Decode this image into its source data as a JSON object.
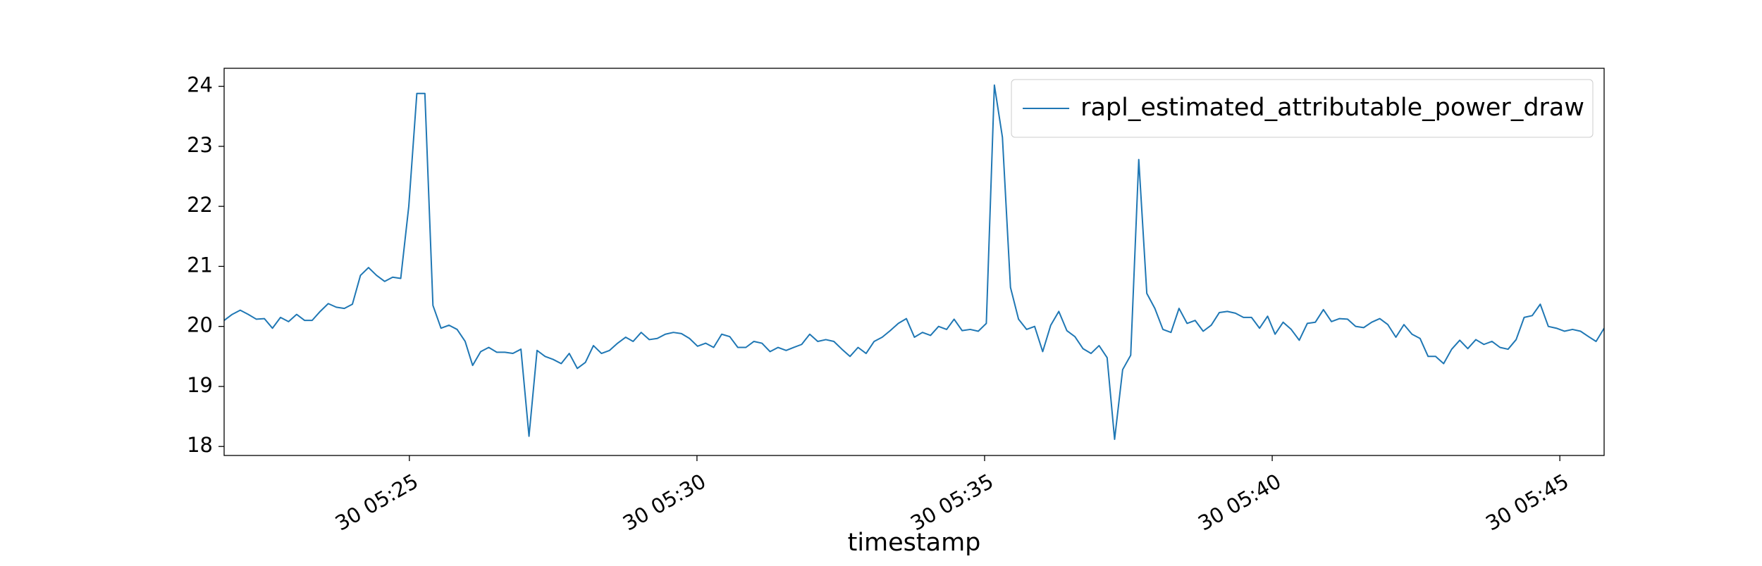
{
  "chart_data": {
    "type": "line",
    "x_label": "timestamp",
    "x": [
      21.78,
      21.92,
      22.06,
      22.2,
      22.34,
      22.48,
      22.62,
      22.76,
      22.9,
      23.04,
      23.18,
      23.31,
      23.45,
      23.59,
      23.73,
      23.87,
      24.01,
      24.15,
      24.29,
      24.43,
      24.57,
      24.71,
      24.85,
      24.99,
      25.13,
      25.27,
      25.41,
      25.55,
      25.69,
      25.83,
      25.97,
      26.1,
      26.24,
      26.38,
      26.52,
      26.66,
      26.8,
      26.94,
      27.08,
      27.22,
      27.36,
      27.5,
      27.64,
      27.78,
      27.92,
      28.06,
      28.2,
      28.34,
      28.48,
      28.62,
      28.76,
      28.89,
      29.03,
      29.17,
      29.31,
      29.45,
      29.59,
      29.73,
      29.87,
      30.01,
      30.15,
      30.29,
      30.43,
      30.57,
      30.71,
      30.85,
      30.99,
      31.13,
      31.27,
      31.41,
      31.55,
      31.68,
      31.82,
      31.96,
      32.1,
      32.24,
      32.38,
      32.52,
      32.66,
      32.8,
      32.94,
      33.08,
      33.22,
      33.36,
      33.5,
      33.64,
      33.78,
      33.92,
      34.06,
      34.2,
      34.34,
      34.47,
      34.61,
      34.75,
      34.89,
      35.03,
      35.17,
      35.31,
      35.45,
      35.59,
      35.73,
      35.87,
      36.01,
      36.15,
      36.29,
      36.43,
      36.57,
      36.71,
      36.85,
      36.99,
      37.13,
      37.26,
      37.4,
      37.54,
      37.68,
      37.82,
      37.96,
      38.1,
      38.24,
      38.38,
      38.52,
      38.66,
      38.8,
      38.94,
      39.08,
      39.22,
      39.36,
      39.5,
      39.64,
      39.78,
      39.92,
      40.05,
      40.19,
      40.33,
      40.47,
      40.61,
      40.75,
      40.89,
      41.03,
      41.17,
      41.31,
      41.45,
      41.59,
      41.73,
      41.87,
      42.01,
      42.15,
      42.29,
      42.43,
      42.57,
      42.71,
      42.84,
      42.98,
      43.12,
      43.26,
      43.4,
      43.54,
      43.68,
      43.82,
      43.96,
      44.1,
      44.24,
      44.38,
      44.52,
      44.66,
      44.8,
      44.94,
      45.08,
      45.22,
      45.36,
      45.5,
      45.63,
      45.77
    ],
    "series": [
      {
        "name": "rapl_estimated_attributable_power_draw",
        "color": "#1f77b4",
        "values": [
          20.1,
          20.2,
          20.27,
          20.2,
          20.12,
          20.13,
          19.97,
          20.15,
          20.08,
          20.2,
          20.1,
          20.1,
          20.25,
          20.38,
          20.32,
          20.3,
          20.37,
          20.85,
          20.98,
          20.85,
          20.75,
          20.82,
          20.8,
          22.0,
          23.88,
          23.88,
          20.35,
          19.97,
          20.02,
          19.95,
          19.75,
          19.35,
          19.58,
          19.65,
          19.57,
          19.57,
          19.55,
          19.62,
          18.17,
          19.6,
          19.5,
          19.45,
          19.38,
          19.55,
          19.3,
          19.4,
          19.68,
          19.55,
          19.6,
          19.72,
          19.82,
          19.75,
          19.9,
          19.78,
          19.8,
          19.87,
          19.9,
          19.88,
          19.8,
          19.67,
          19.72,
          19.65,
          19.87,
          19.83,
          19.65,
          19.65,
          19.75,
          19.72,
          19.58,
          19.65,
          19.6,
          19.65,
          19.7,
          19.87,
          19.75,
          19.78,
          19.75,
          19.62,
          19.5,
          19.65,
          19.55,
          19.75,
          19.82,
          19.93,
          20.05,
          20.13,
          19.82,
          19.9,
          19.85,
          20.0,
          19.95,
          20.12,
          19.93,
          19.95,
          19.92,
          20.05,
          24.02,
          23.15,
          20.65,
          20.12,
          19.95,
          20.0,
          19.58,
          20.02,
          20.25,
          19.93,
          19.83,
          19.63,
          19.55,
          19.68,
          19.48,
          18.12,
          19.28,
          19.52,
          22.78,
          20.55,
          20.3,
          19.95,
          19.9,
          20.3,
          20.05,
          20.1,
          19.92,
          20.02,
          20.23,
          20.25,
          20.22,
          20.15,
          20.15,
          19.97,
          20.17,
          19.87,
          20.07,
          19.95,
          19.77,
          20.05,
          20.07,
          20.28,
          20.08,
          20.13,
          20.12,
          20.0,
          19.98,
          20.07,
          20.13,
          20.03,
          19.82,
          20.03,
          19.87,
          19.8,
          19.5,
          19.5,
          19.38,
          19.62,
          19.77,
          19.63,
          19.78,
          19.7,
          19.75,
          19.65,
          19.62,
          19.78,
          20.15,
          20.18,
          20.37,
          20.0,
          19.97,
          19.92,
          19.95,
          19.92,
          19.83,
          19.75,
          19.97
        ]
      }
    ],
    "xlim": [
      21.78,
      45.77
    ],
    "xticks": [
      {
        "value": 25,
        "label": "30 05:25"
      },
      {
        "value": 30,
        "label": "30 05:30"
      },
      {
        "value": 35,
        "label": "30 05:35"
      },
      {
        "value": 40,
        "label": "30 05:40"
      },
      {
        "value": 45,
        "label": "30 05:45"
      }
    ],
    "ylim": [
      17.85,
      24.3
    ],
    "yticks": [
      18,
      19,
      20,
      21,
      22,
      23,
      24
    ],
    "grid": false,
    "legend": "upper right"
  }
}
